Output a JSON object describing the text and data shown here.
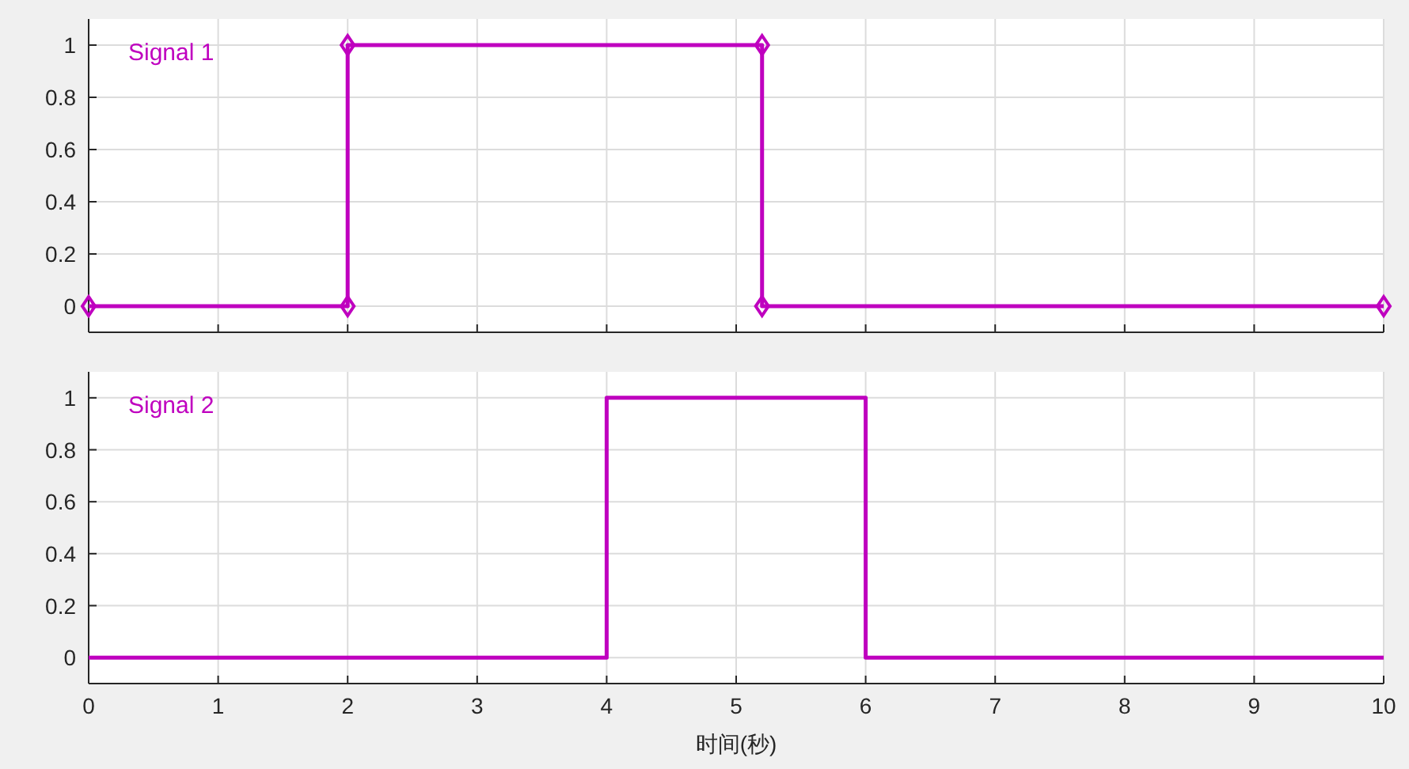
{
  "chart_data": [
    {
      "type": "line",
      "x": [
        0,
        2,
        2,
        5.2,
        5.2,
        10
      ],
      "series": [
        {
          "name": "Signal 1",
          "color": "#bf00bf",
          "values": [
            0,
            0,
            1,
            1,
            0,
            0
          ]
        }
      ],
      "xlim": [
        0,
        10
      ],
      "xticks": [
        0,
        1,
        2,
        3,
        4,
        5,
        6,
        7,
        8,
        9,
        10
      ],
      "ylim": [
        -0.1,
        1.1
      ],
      "yticks": [
        0,
        0.2,
        0.4,
        0.6,
        0.8,
        1
      ],
      "grid": true,
      "legend": "top left",
      "marker": "diamond",
      "tick_labels": "y"
    },
    {
      "type": "line",
      "x": [
        0,
        4,
        4,
        6,
        6,
        10
      ],
      "series": [
        {
          "name": "Signal 2",
          "color": "#bf00bf",
          "values": [
            0,
            0,
            1,
            1,
            0,
            0
          ]
        }
      ],
      "xlim": [
        0,
        10
      ],
      "xticks": [
        0,
        1,
        2,
        3,
        4,
        5,
        6,
        7,
        8,
        9,
        10
      ],
      "ylim": [
        -0.1,
        1.1
      ],
      "yticks": [
        0,
        0.2,
        0.4,
        0.6,
        0.8,
        1
      ],
      "grid": true,
      "legend": "top left",
      "xlabel": "时间(秒)"
    }
  ]
}
